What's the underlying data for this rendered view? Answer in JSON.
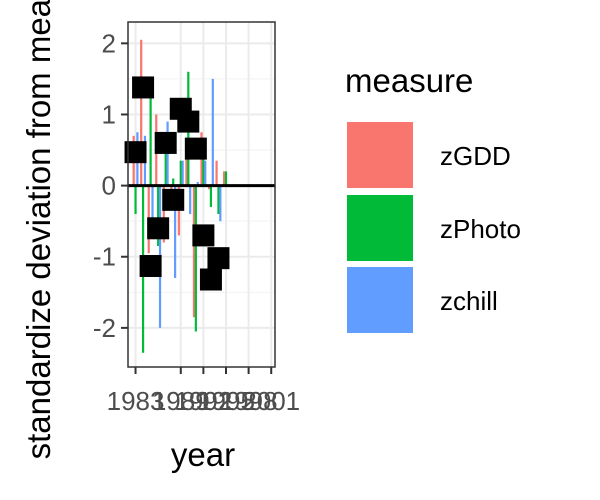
{
  "chart_data": {
    "type": "bar",
    "x_label": "year",
    "y_label": "standardize deviation from mean",
    "x_range": [
      1982,
      2001.5
    ],
    "y_range": [
      -2.55,
      2.3
    ],
    "x_ticks": [
      1983,
      1989,
      1992,
      1995,
      1998,
      2001
    ],
    "x_tick_labels": [
      "1983",
      "1989",
      "1992",
      "1995",
      "1998",
      "2001"
    ],
    "y_ticks": [
      -2,
      -1,
      0,
      1,
      2
    ],
    "y_tick_labels": [
      "-2",
      "-1",
      "0",
      "1",
      "2"
    ],
    "grid": true,
    "zero_line": true,
    "legend": {
      "title": "measure",
      "position": "right",
      "entries": [
        {
          "label": "zGDD",
          "color": "#F8766D"
        },
        {
          "label": "zPhoto",
          "color": "#00BA38"
        },
        {
          "label": "zchill",
          "color": "#619CFF"
        }
      ]
    },
    "series": [
      {
        "name": "zGDD",
        "color": "#F8766D",
        "points": [
          {
            "x": 1983,
            "y": 0.7
          },
          {
            "x": 1984,
            "y": 2.05
          },
          {
            "x": 1985,
            "y": -0.95
          },
          {
            "x": 1986,
            "y": 1.0
          },
          {
            "x": 1987,
            "y": -0.8
          },
          {
            "x": 1988,
            "y": -0.05
          },
          {
            "x": 1989,
            "y": -0.7
          },
          {
            "x": 1990,
            "y": 0.6
          },
          {
            "x": 1991,
            "y": -1.85
          },
          {
            "x": 1992,
            "y": 0.75
          },
          {
            "x": 1993,
            "y": -0.05
          },
          {
            "x": 1994,
            "y": 0.35
          },
          {
            "x": 1995,
            "y": 0.2
          }
        ]
      },
      {
        "name": "zPhoto",
        "color": "#00BA38",
        "points": [
          {
            "x": 1983,
            "y": -0.4
          },
          {
            "x": 1984,
            "y": -2.35
          },
          {
            "x": 1985,
            "y": 1.4
          },
          {
            "x": 1986,
            "y": -0.85
          },
          {
            "x": 1987,
            "y": 0.65
          },
          {
            "x": 1988,
            "y": 0.1
          },
          {
            "x": 1989,
            "y": 0.35
          },
          {
            "x": 1990,
            "y": 1.6
          },
          {
            "x": 1991,
            "y": -2.05
          },
          {
            "x": 1992,
            "y": 0.6
          },
          {
            "x": 1993,
            "y": -0.3
          },
          {
            "x": 1994,
            "y": -0.4
          },
          {
            "x": 1995,
            "y": 0.2
          }
        ]
      },
      {
        "name": "zchill",
        "color": "#619CFF",
        "points": [
          {
            "x": 1983,
            "y": 0.75
          },
          {
            "x": 1984,
            "y": 0.7
          },
          {
            "x": 1985,
            "y": -0.55
          },
          {
            "x": 1986,
            "y": -2.0
          },
          {
            "x": 1987,
            "y": 0.9
          },
          {
            "x": 1988,
            "y": -1.3
          },
          {
            "x": 1989,
            "y": 0.35
          },
          {
            "x": 1990,
            "y": -0.4
          },
          {
            "x": 1991,
            "y": 0.05
          },
          {
            "x": 1992,
            "y": 0.35
          },
          {
            "x": 1993,
            "y": 1.5
          },
          {
            "x": 1994,
            "y": -0.5
          },
          {
            "x": 1995,
            "y": 0.0
          }
        ]
      },
      {
        "name": "",
        "color": "#000000",
        "points": [
          {
            "x": 1983,
            "y": 0.47
          },
          {
            "x": 1984,
            "y": 1.38
          },
          {
            "x": 1985,
            "y": -1.13
          },
          {
            "x": 1986,
            "y": -0.6
          },
          {
            "x": 1987,
            "y": 0.6
          },
          {
            "x": 1988,
            "y": -0.2
          },
          {
            "x": 1989,
            "y": 1.08
          },
          {
            "x": 1990,
            "y": 0.9
          },
          {
            "x": 1991,
            "y": 0.52
          },
          {
            "x": 1992,
            "y": -0.7
          },
          {
            "x": 1993,
            "y": -1.32
          },
          {
            "x": 1994,
            "y": -1.02
          }
        ]
      }
    ]
  }
}
